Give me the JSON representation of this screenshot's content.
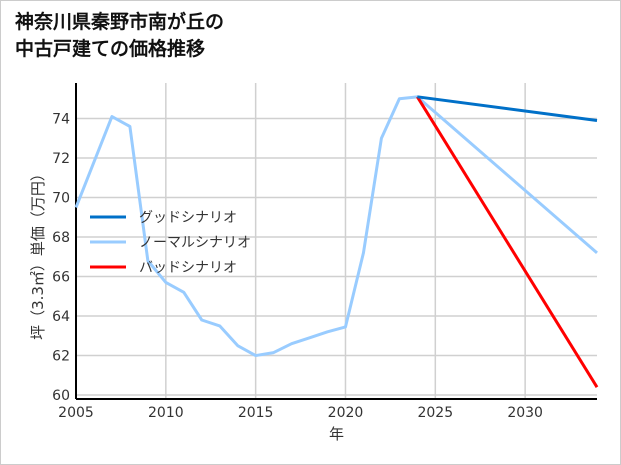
{
  "chart_data": {
    "type": "line",
    "title_lines": [
      "神奈川県秦野市南が丘の",
      "中古戸建ての価格推移"
    ],
    "xlabel": "年",
    "ylabel": "坪（3.3㎡）単価（万円）",
    "xlim": [
      2005,
      2034
    ],
    "ylim": [
      59.8,
      75.8
    ],
    "xticks": [
      2005,
      2010,
      2015,
      2020,
      2025,
      2030
    ],
    "yticks": [
      60,
      62,
      64,
      66,
      68,
      70,
      72,
      74
    ],
    "grid": true,
    "legend_position": "center-left",
    "series": [
      {
        "name": "グッドシナリオ",
        "color": "#0070c8",
        "x": [
          2024,
          2034
        ],
        "y": [
          75.1,
          73.9
        ]
      },
      {
        "name": "ノーマルシナリオ",
        "color": "#99ccff",
        "x": [
          2005,
          2007,
          2008,
          2009,
          2010,
          2011,
          2012,
          2013,
          2014,
          2015,
          2016,
          2017,
          2018,
          2019,
          2020,
          2021,
          2022,
          2023,
          2024,
          2034
        ],
        "y": [
          69.5,
          74.1,
          73.6,
          66.8,
          65.7,
          65.2,
          63.8,
          63.5,
          62.5,
          62.0,
          62.15,
          62.6,
          62.9,
          63.2,
          63.45,
          67.2,
          73.0,
          75.0,
          75.1,
          67.2
        ]
      },
      {
        "name": "バッドシナリオ",
        "color": "#ff0000",
        "x": [
          2024,
          2034
        ],
        "y": [
          75.1,
          60.4
        ]
      }
    ]
  }
}
